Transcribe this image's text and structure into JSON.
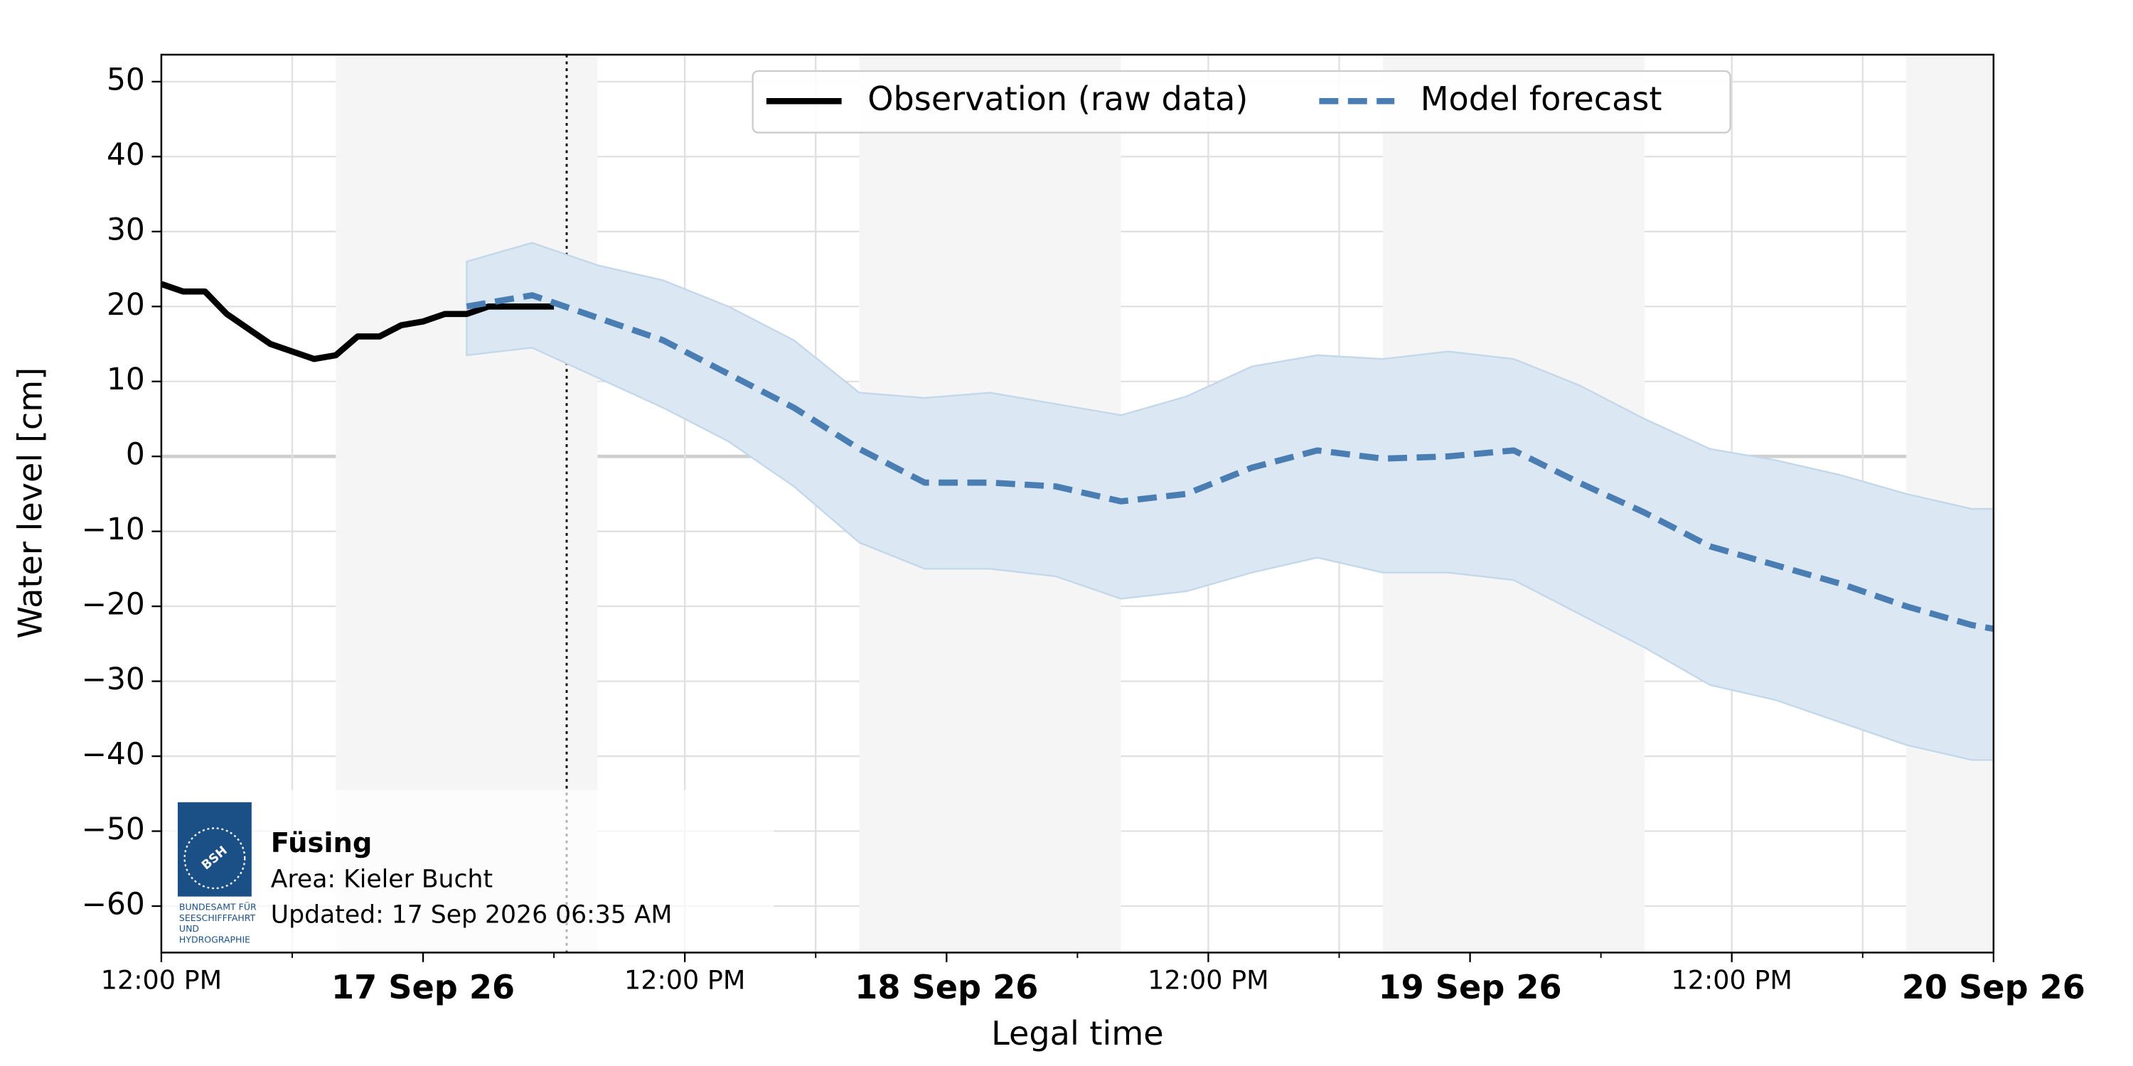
{
  "chart_data": {
    "type": "line",
    "xlabel": "Legal time",
    "ylabel": "Water level [cm]",
    "xlim": [
      "2026-09-16T12:00",
      "2026-09-20T00:00"
    ],
    "xticks": [
      {
        "value": "2026-09-16T12:00",
        "label": "12:00 PM"
      },
      {
        "value": "2026-09-17T00:00",
        "label": "17 Sep 26"
      },
      {
        "value": "2026-09-17T12:00",
        "label": "12:00 PM"
      },
      {
        "value": "2026-09-18T00:00",
        "label": "18 Sep 26"
      },
      {
        "value": "2026-09-18T12:00",
        "label": "12:00 PM"
      },
      {
        "value": "2026-09-19T00:00",
        "label": "19 Sep 26"
      },
      {
        "value": "2026-09-19T12:00",
        "label": "12:00 PM"
      },
      {
        "value": "2026-09-20T00:00",
        "label": "20 Sep 26"
      }
    ],
    "xminor": [
      "2026-09-16T18:00",
      "2026-09-17T06:00",
      "2026-09-17T18:00",
      "2026-09-18T06:00",
      "2026-09-18T18:00",
      "2026-09-19T06:00",
      "2026-09-19T18:00"
    ],
    "ylim": [
      -66.2,
      53.6
    ],
    "yticks": [
      {
        "value": -60,
        "label": "−60"
      },
      {
        "value": -50,
        "label": "−50"
      },
      {
        "value": -40,
        "label": "−40"
      },
      {
        "value": -30,
        "label": "−30"
      },
      {
        "value": -20,
        "label": "−20"
      },
      {
        "value": -10,
        "label": "−10"
      },
      0,
      10,
      20,
      30,
      40,
      50
    ],
    "grid": true,
    "night_shading": [
      [
        "2026-09-16T20:00",
        "2026-09-17T08:00"
      ],
      [
        "2026-09-17T20:00",
        "2026-09-18T08:00"
      ],
      [
        "2026-09-18T20:00",
        "2026-09-19T08:00"
      ],
      [
        "2026-09-19T20:00",
        "2026-09-20T08:00"
      ]
    ],
    "now_line": "2026-09-17T06:35",
    "legend": "upper center",
    "series": [
      {
        "name": "Observation (raw data)",
        "color": "#000000",
        "style": "solid",
        "x": [
          "2026-09-16T12:00",
          "2026-09-16T13:00",
          "2026-09-16T14:00",
          "2026-09-16T15:00",
          "2026-09-16T16:00",
          "2026-09-16T17:00",
          "2026-09-16T18:00",
          "2026-09-16T19:00",
          "2026-09-16T20:00",
          "2026-09-16T21:00",
          "2026-09-16T22:00",
          "2026-09-16T23:00",
          "2026-09-17T00:00",
          "2026-09-17T01:00",
          "2026-09-17T02:00",
          "2026-09-17T03:00",
          "2026-09-17T04:00",
          "2026-09-17T05:00",
          "2026-09-17T06:00"
        ],
        "values": [
          23,
          22,
          22,
          19,
          17,
          15,
          14,
          13,
          13.5,
          16,
          16,
          17.5,
          18,
          19,
          19,
          20,
          20,
          20,
          20
        ]
      },
      {
        "name": "Model forecast",
        "color": "#4a7eb3",
        "style": "dashed",
        "band_color": "#dbe7f2",
        "x": [
          "2026-09-17T02:00",
          "2026-09-17T05:00",
          "2026-09-17T08:00",
          "2026-09-17T11:00",
          "2026-09-17T14:00",
          "2026-09-17T17:00",
          "2026-09-17T20:00",
          "2026-09-17T23:00",
          "2026-09-18T02:00",
          "2026-09-18T05:00",
          "2026-09-18T08:00",
          "2026-09-18T11:00",
          "2026-09-18T14:00",
          "2026-09-18T17:00",
          "2026-09-18T20:00",
          "2026-09-18T23:00",
          "2026-09-19T02:00",
          "2026-09-19T05:00",
          "2026-09-19T08:00",
          "2026-09-19T11:00",
          "2026-09-19T14:00",
          "2026-09-19T17:00",
          "2026-09-19T20:00",
          "2026-09-19T23:00",
          "2026-09-20T00:00"
        ],
        "values": [
          20,
          21.5,
          18.5,
          15.5,
          11,
          6.5,
          1,
          -3.5,
          -3.5,
          -4,
          -6,
          -5,
          -1.5,
          0.8,
          -0.3,
          0,
          0.8,
          -3.5,
          -7.5,
          -12,
          -14.5,
          -17,
          -20,
          -22.5,
          -23
        ],
        "upper": [
          26,
          28.5,
          25.5,
          23.5,
          20,
          15.5,
          8.5,
          7.8,
          8.5,
          7,
          5.5,
          8,
          12,
          13.5,
          13,
          14,
          13,
          9.5,
          5,
          1,
          -0.5,
          -2.5,
          -5,
          -7,
          -7
        ],
        "lower": [
          13.5,
          14.5,
          10.5,
          6.5,
          2,
          -4,
          -11.5,
          -15,
          -15,
          -16,
          -19,
          -18,
          -15.5,
          -13.5,
          -15.5,
          -15.5,
          -16.5,
          -21,
          -25.5,
          -30.5,
          -32.5,
          -35.5,
          -38.5,
          -40.5,
          -40.5
        ]
      }
    ]
  },
  "info": {
    "logo_abbr": "BSH",
    "logo_lines": [
      "BUNDESAMT FÜR",
      "SEESCHIFFFAHRT",
      "UND",
      "HYDROGRAPHIE"
    ],
    "station": "Füsing",
    "area": "Area: Kieler Bucht",
    "updated": "Updated: 17 Sep 2026 06:35 AM"
  }
}
